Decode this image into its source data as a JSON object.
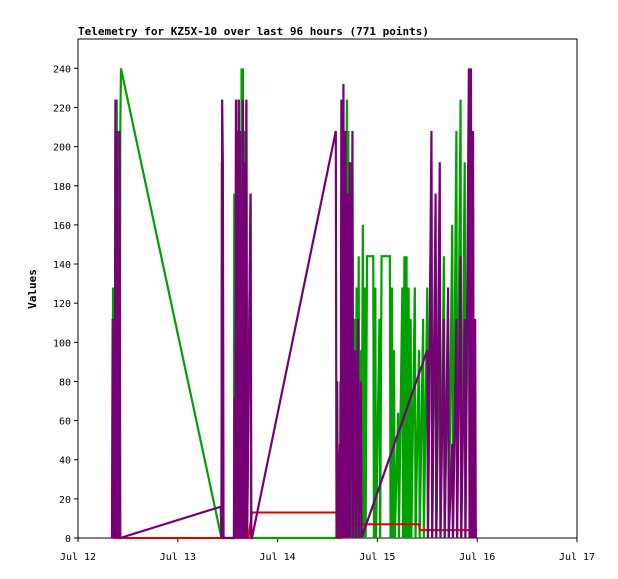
{
  "chart_data": {
    "type": "line",
    "title": "Telemetry for KZ5X-10 over last 96 hours (771 points)",
    "ylabel": "Values",
    "xlabel": "",
    "ylim": [
      0,
      255
    ],
    "yticks": [
      0,
      20,
      40,
      60,
      80,
      100,
      120,
      140,
      160,
      180,
      200,
      220,
      240
    ],
    "xlim": [
      "2024-07-12T00:00",
      "2024-07-17T00:00"
    ],
    "xticks": [
      {
        "label": "Jul 12",
        "x": "2024-07-12T00:00"
      },
      {
        "label": "Jul 13",
        "x": "2024-07-13T00:00"
      },
      {
        "label": "Jul 14",
        "x": "2024-07-14T00:00"
      },
      {
        "label": "Jul 15",
        "x": "2024-07-15T00:00"
      },
      {
        "label": "Jul 16",
        "x": "2024-07-16T00:00"
      },
      {
        "label": "Jul 17",
        "x": "2024-07-17T00:00"
      }
    ],
    "grid": false,
    "legend": "none",
    "series": [
      {
        "color": "#00a000",
        "points": [
          [
            "2024-07-12T08:20",
            0
          ],
          [
            "2024-07-12T08:25",
            128
          ],
          [
            "2024-07-12T08:30",
            0
          ],
          [
            "2024-07-12T08:40",
            128
          ],
          [
            "2024-07-12T08:50",
            0
          ],
          [
            "2024-07-12T09:00",
            208
          ],
          [
            "2024-07-12T09:10",
            0
          ],
          [
            "2024-07-12T09:20",
            224
          ],
          [
            "2024-07-12T09:30",
            0
          ],
          [
            "2024-07-12T09:45",
            208
          ],
          [
            "2024-07-12T10:00",
            0
          ],
          [
            "2024-07-12T10:10",
            208
          ],
          [
            "2024-07-12T10:20",
            240
          ],
          [
            "2024-07-13T10:30",
            0
          ],
          [
            "2024-07-13T10:35",
            192
          ],
          [
            "2024-07-13T10:40",
            0
          ],
          [
            "2024-07-13T13:30",
            0
          ],
          [
            "2024-07-13T13:35",
            176
          ],
          [
            "2024-07-13T13:45",
            0
          ],
          [
            "2024-07-13T14:00",
            224
          ],
          [
            "2024-07-13T14:10",
            0
          ],
          [
            "2024-07-13T14:20",
            208
          ],
          [
            "2024-07-13T14:30",
            0
          ],
          [
            "2024-07-13T14:40",
            224
          ],
          [
            "2024-07-13T14:50",
            0
          ],
          [
            "2024-07-13T15:00",
            208
          ],
          [
            "2024-07-13T15:10",
            0
          ],
          [
            "2024-07-13T15:20",
            240
          ],
          [
            "2024-07-13T15:30",
            0
          ],
          [
            "2024-07-13T15:40",
            240
          ],
          [
            "2024-07-13T15:50",
            0
          ],
          [
            "2024-07-13T16:00",
            208
          ],
          [
            "2024-07-13T16:10",
            0
          ],
          [
            "2024-07-13T16:30",
            224
          ],
          [
            "2024-07-13T16:40",
            0
          ],
          [
            "2024-07-13T17:30",
            176
          ],
          [
            "2024-07-13T17:40",
            0
          ],
          [
            "2024-07-14T15:00",
            0
          ],
          [
            "2024-07-14T15:05",
            80
          ],
          [
            "2024-07-14T15:10",
            0
          ],
          [
            "2024-07-14T15:30",
            208
          ],
          [
            "2024-07-14T15:40",
            0
          ],
          [
            "2024-07-14T15:50",
            224
          ],
          [
            "2024-07-14T16:00",
            0
          ],
          [
            "2024-07-14T16:10",
            208
          ],
          [
            "2024-07-14T16:20",
            0
          ],
          [
            "2024-07-14T16:40",
            224
          ],
          [
            "2024-07-14T16:50",
            0
          ],
          [
            "2024-07-14T17:00",
            208
          ],
          [
            "2024-07-14T17:10",
            0
          ],
          [
            "2024-07-14T17:30",
            192
          ],
          [
            "2024-07-14T17:40",
            0
          ],
          [
            "2024-07-14T18:00",
            176
          ],
          [
            "2024-07-14T18:10",
            0
          ],
          [
            "2024-07-14T18:30",
            112
          ],
          [
            "2024-07-14T18:40",
            0
          ],
          [
            "2024-07-14T19:00",
            128
          ],
          [
            "2024-07-14T19:10",
            0
          ],
          [
            "2024-07-14T19:30",
            144
          ],
          [
            "2024-07-14T19:40",
            0
          ],
          [
            "2024-07-14T20:00",
            96
          ],
          [
            "2024-07-14T20:10",
            0
          ],
          [
            "2024-07-14T20:30",
            160
          ],
          [
            "2024-07-14T20:40",
            0
          ],
          [
            "2024-07-14T21:00",
            128
          ],
          [
            "2024-07-14T21:10",
            0
          ],
          [
            "2024-07-14T21:30",
            144
          ],
          [
            "2024-07-14T23:00",
            144
          ],
          [
            "2024-07-14T23:10",
            0
          ],
          [
            "2024-07-14T23:30",
            128
          ],
          [
            "2024-07-14T23:40",
            0
          ],
          [
            "2024-07-15T00:30",
            112
          ],
          [
            "2024-07-15T00:40",
            0
          ],
          [
            "2024-07-15T01:00",
            144
          ],
          [
            "2024-07-15T03:00",
            144
          ],
          [
            "2024-07-15T03:10",
            0
          ],
          [
            "2024-07-15T03:30",
            128
          ],
          [
            "2024-07-15T03:40",
            0
          ],
          [
            "2024-07-15T04:00",
            96
          ],
          [
            "2024-07-15T04:10",
            0
          ],
          [
            "2024-07-15T05:00",
            64
          ],
          [
            "2024-07-15T05:10",
            0
          ],
          [
            "2024-07-15T06:00",
            128
          ],
          [
            "2024-07-15T06:10",
            0
          ],
          [
            "2024-07-15T06:30",
            144
          ],
          [
            "2024-07-15T06:40",
            0
          ],
          [
            "2024-07-15T07:00",
            144
          ],
          [
            "2024-07-15T07:10",
            0
          ],
          [
            "2024-07-15T07:30",
            128
          ],
          [
            "2024-07-15T07:40",
            0
          ],
          [
            "2024-07-15T08:00",
            112
          ],
          [
            "2024-07-15T08:10",
            0
          ],
          [
            "2024-07-15T09:00",
            128
          ],
          [
            "2024-07-15T09:10",
            0
          ],
          [
            "2024-07-15T10:00",
            96
          ],
          [
            "2024-07-15T10:10",
            0
          ],
          [
            "2024-07-15T11:00",
            112
          ],
          [
            "2024-07-15T11:10",
            0
          ],
          [
            "2024-07-15T12:00",
            128
          ],
          [
            "2024-07-15T12:10",
            0
          ],
          [
            "2024-07-15T13:00",
            192
          ],
          [
            "2024-07-15T13:10",
            0
          ],
          [
            "2024-07-15T14:00",
            144
          ],
          [
            "2024-07-15T14:10",
            0
          ],
          [
            "2024-07-15T15:00",
            128
          ],
          [
            "2024-07-15T15:10",
            0
          ],
          [
            "2024-07-15T16:00",
            144
          ],
          [
            "2024-07-15T16:10",
            0
          ],
          [
            "2024-07-15T17:00",
            112
          ],
          [
            "2024-07-15T17:10",
            0
          ],
          [
            "2024-07-15T18:00",
            160
          ],
          [
            "2024-07-15T18:10",
            0
          ],
          [
            "2024-07-15T19:00",
            208
          ],
          [
            "2024-07-15T19:10",
            0
          ],
          [
            "2024-07-15T20:00",
            224
          ],
          [
            "2024-07-15T20:10",
            0
          ],
          [
            "2024-07-15T21:00",
            192
          ],
          [
            "2024-07-15T21:10",
            0
          ],
          [
            "2024-07-15T22:00",
            208
          ],
          [
            "2024-07-15T22:10",
            0
          ],
          [
            "2024-07-15T23:00",
            176
          ],
          [
            "2024-07-15T23:10",
            0
          ]
        ]
      },
      {
        "color": "#e00000",
        "points": [
          [
            "2024-07-12T08:20",
            0
          ],
          [
            "2024-07-13T17:00",
            0
          ],
          [
            "2024-07-13T17:50",
            13
          ],
          [
            "2024-07-14T14:30",
            13
          ],
          [
            "2024-07-14T14:40",
            0
          ],
          [
            "2024-07-14T15:00",
            0
          ],
          [
            "2024-07-14T15:20",
            8
          ],
          [
            "2024-07-14T15:40",
            8
          ],
          [
            "2024-07-14T15:50",
            7
          ],
          [
            "2024-07-15T10:00",
            7
          ],
          [
            "2024-07-15T10:10",
            4
          ],
          [
            "2024-07-16T00:00",
            4
          ]
        ]
      },
      {
        "color": "#770077",
        "points": [
          [
            "2024-07-12T08:10",
            0
          ],
          [
            "2024-07-12T08:20",
            112
          ],
          [
            "2024-07-12T08:30",
            0
          ],
          [
            "2024-07-12T08:40",
            48
          ],
          [
            "2024-07-12T08:50",
            0
          ],
          [
            "2024-07-12T09:00",
            224
          ],
          [
            "2024-07-12T09:10",
            0
          ],
          [
            "2024-07-12T09:20",
            208
          ],
          [
            "2024-07-12T09:30",
            0
          ],
          [
            "2024-07-12T09:40",
            144
          ],
          [
            "2024-07-12T09:50",
            0
          ],
          [
            "2024-07-12T10:00",
            208
          ],
          [
            "2024-07-12T10:10",
            0
          ],
          [
            "2024-07-13T10:20",
            16
          ],
          [
            "2024-07-13T10:30",
            0
          ],
          [
            "2024-07-13T10:40",
            224
          ],
          [
            "2024-07-13T10:50",
            192
          ],
          [
            "2024-07-13T11:00",
            0
          ],
          [
            "2024-07-13T13:30",
            0
          ],
          [
            "2024-07-13T13:40",
            72
          ],
          [
            "2024-07-13T13:50",
            0
          ],
          [
            "2024-07-13T14:00",
            224
          ],
          [
            "2024-07-13T14:10",
            0
          ],
          [
            "2024-07-13T14:20",
            208
          ],
          [
            "2024-07-13T14:30",
            0
          ],
          [
            "2024-07-13T14:40",
            224
          ],
          [
            "2024-07-13T14:50",
            0
          ],
          [
            "2024-07-13T15:00",
            208
          ],
          [
            "2024-07-13T15:10",
            0
          ],
          [
            "2024-07-13T15:20",
            176
          ],
          [
            "2024-07-13T15:30",
            0
          ],
          [
            "2024-07-13T15:40",
            224
          ],
          [
            "2024-07-13T15:50",
            0
          ],
          [
            "2024-07-13T16:00",
            192
          ],
          [
            "2024-07-13T16:10",
            0
          ],
          [
            "2024-07-13T16:30",
            224
          ],
          [
            "2024-07-13T16:40",
            0
          ],
          [
            "2024-07-13T17:30",
            176
          ],
          [
            "2024-07-13T17:40",
            0
          ],
          [
            "2024-07-13T17:50",
            0
          ],
          [
            "2024-07-14T14:00",
            208
          ],
          [
            "2024-07-14T14:10",
            0
          ],
          [
            "2024-07-14T14:20",
            80
          ],
          [
            "2024-07-14T14:30",
            0
          ],
          [
            "2024-07-14T15:00",
            48
          ],
          [
            "2024-07-14T15:10",
            0
          ],
          [
            "2024-07-14T15:20",
            224
          ],
          [
            "2024-07-14T15:30",
            0
          ],
          [
            "2024-07-14T15:50",
            232
          ],
          [
            "2024-07-14T16:00",
            0
          ],
          [
            "2024-07-14T16:20",
            208
          ],
          [
            "2024-07-14T16:30",
            0
          ],
          [
            "2024-07-14T16:50",
            176
          ],
          [
            "2024-07-14T17:00",
            0
          ],
          [
            "2024-07-14T17:20",
            192
          ],
          [
            "2024-07-14T17:30",
            0
          ],
          [
            "2024-07-14T18:00",
            208
          ],
          [
            "2024-07-14T18:10",
            0
          ],
          [
            "2024-07-14T18:40",
            96
          ],
          [
            "2024-07-14T18:50",
            0
          ],
          [
            "2024-07-14T19:20",
            112
          ],
          [
            "2024-07-14T19:30",
            0
          ],
          [
            "2024-07-14T20:00",
            80
          ],
          [
            "2024-07-14T20:10",
            0
          ],
          [
            "2024-07-15T12:00",
            96
          ],
          [
            "2024-07-15T12:10",
            0
          ],
          [
            "2024-07-15T13:00",
            208
          ],
          [
            "2024-07-15T13:10",
            0
          ],
          [
            "2024-07-15T14:00",
            176
          ],
          [
            "2024-07-15T14:10",
            0
          ],
          [
            "2024-07-15T15:00",
            192
          ],
          [
            "2024-07-15T15:10",
            0
          ],
          [
            "2024-07-15T16:00",
            112
          ],
          [
            "2024-07-15T16:10",
            0
          ],
          [
            "2024-07-15T17:00",
            128
          ],
          [
            "2024-07-15T17:10",
            0
          ],
          [
            "2024-07-15T18:00",
            48
          ],
          [
            "2024-07-15T18:10",
            0
          ],
          [
            "2024-07-15T19:00",
            112
          ],
          [
            "2024-07-15T19:10",
            0
          ],
          [
            "2024-07-15T20:00",
            144
          ],
          [
            "2024-07-15T20:10",
            0
          ],
          [
            "2024-07-15T21:00",
            112
          ],
          [
            "2024-07-15T21:10",
            0
          ],
          [
            "2024-07-15T22:00",
            240
          ],
          [
            "2024-07-15T22:10",
            0
          ],
          [
            "2024-07-15T22:30",
            240
          ],
          [
            "2024-07-15T22:40",
            0
          ],
          [
            "2024-07-15T23:00",
            208
          ],
          [
            "2024-07-15T23:10",
            0
          ],
          [
            "2024-07-15T23:30",
            112
          ],
          [
            "2024-07-15T23:40",
            0
          ]
        ]
      }
    ]
  }
}
